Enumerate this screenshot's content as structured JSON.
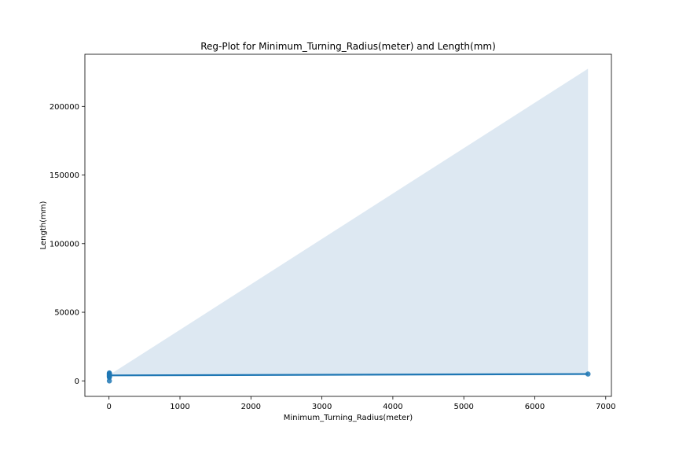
{
  "chart_data": {
    "type": "scatter",
    "title": "Reg-Plot for Minimum_Turning_Radius(meter) and Length(mm)",
    "xlabel": "Minimum_Turning_Radius(meter)",
    "ylabel": "Length(mm)",
    "xlim": [
      -340,
      7080
    ],
    "ylim": [
      -11300,
      238000
    ],
    "xticks": [
      0,
      1000,
      2000,
      3000,
      4000,
      5000,
      6000,
      7000
    ],
    "yticks": [
      0,
      50000,
      100000,
      150000,
      200000
    ],
    "grid": false,
    "colors": {
      "points": "#1f77b4",
      "line": "#1f77b4",
      "band": "#dde8f2"
    },
    "points": [
      {
        "x": 5.0,
        "y": 5800
      },
      {
        "x": 5.2,
        "y": 5300
      },
      {
        "x": 5.4,
        "y": 5000
      },
      {
        "x": 5.1,
        "y": 4700
      },
      {
        "x": 5.3,
        "y": 4300
      },
      {
        "x": 4.8,
        "y": 4000
      },
      {
        "x": 5.5,
        "y": 3700
      },
      {
        "x": 5.0,
        "y": 3400
      },
      {
        "x": 4.9,
        "y": 3000
      },
      {
        "x": 5.2,
        "y": 2500
      },
      {
        "x": 5.0,
        "y": 0
      },
      {
        "x": 6750,
        "y": 4990
      }
    ],
    "regression_line": [
      {
        "x": 4.8,
        "y": 4000
      },
      {
        "x": 6750,
        "y": 5000
      }
    ],
    "confidence_band": {
      "x": [
        4.8,
        6750
      ],
      "lower": [
        3700,
        4000
      ],
      "upper": [
        4300,
        227500
      ]
    }
  }
}
